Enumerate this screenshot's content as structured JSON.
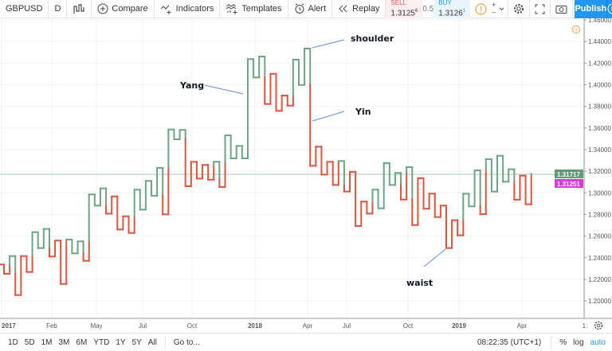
{
  "toolbar": {
    "symbol": "GBPUSD",
    "interval": "D",
    "compare": "Compare",
    "indicators": "Indicators",
    "templates": "Templates",
    "alert": "Alert",
    "replay": "Replay",
    "sell_label": "SELL",
    "sell_price": "1.3125",
    "sell_sup": "6",
    "spread": "0.5",
    "buy_label": "BUY",
    "buy_price": "1.3126",
    "buy_sup": "1",
    "publish": "Publish",
    "icons": [
      "kagi-chart-icon",
      "plus-circle-icon",
      "indicators-icon",
      "templates-icon",
      "alarm-clock-icon",
      "replay-icon",
      "info-icon",
      "zoom-in-icon",
      "zoom-out-icon",
      "chevron-down-icon",
      "gear-icon",
      "fullscreen-icon",
      "camera-icon",
      "play-icon"
    ]
  },
  "colors": {
    "yang": "#6ba583",
    "yin": "#e0533d",
    "accent": "#2196f3",
    "last_price_bg": "#5f9e74",
    "bid_bg": "#d53bd6",
    "annotation_line": "#5b8fe6"
  },
  "chart_data": {
    "type": "kagi",
    "symbol": "GBPUSD",
    "ylim": [
      1.19,
      1.465
    ],
    "y_ticks": [
      "1.46000",
      "1.44000",
      "1.42000",
      "1.40000",
      "1.38000",
      "1.36000",
      "1.34000",
      "1.32000",
      "1.30000",
      "1.28000",
      "1.26000",
      "1.24000",
      "1.22000",
      "1.20000"
    ],
    "x_ticks": [
      "2017",
      "Feb",
      "May",
      "Jul",
      "Oct",
      "2018",
      "Apr",
      "Jul",
      "Oct",
      "2019",
      "Apr",
      "1:"
    ],
    "levels": [
      1.2337,
      1.2251,
      1.2415,
      1.2054,
      1.2415,
      1.2268,
      1.2636,
      1.2489,
      1.2666,
      1.2411,
      1.2558,
      1.2157,
      1.2568,
      1.244,
      1.2551,
      1.2371,
      1.2985,
      1.2882,
      1.3041,
      1.2808,
      1.2967,
      1.2661,
      1.2783,
      1.2629,
      1.3029,
      1.2845,
      1.311,
      1.2973,
      1.323,
      1.2801,
      1.3586,
      1.3495,
      1.3582,
      1.3061,
      1.3287,
      1.3132,
      1.3258,
      1.3122,
      1.3287,
      1.3054,
      1.3532,
      1.3319,
      1.3434,
      1.3319,
      1.4237,
      1.4068,
      1.4261,
      1.3822,
      1.4101,
      1.3758,
      1.39,
      1.3807,
      1.4232,
      1.3998,
      1.4335,
      1.325,
      1.3427,
      1.3169,
      1.3287,
      1.3073,
      1.3294,
      1.3012,
      1.3194,
      1.2693,
      1.2919,
      1.2808,
      1.3029,
      1.2857,
      1.3275,
      1.3073,
      1.3184,
      1.2938,
      1.3238,
      1.2702,
      1.3135,
      1.2853,
      1.2992,
      1.2776,
      1.2882,
      1.2489,
      1.2747,
      1.2607,
      1.2992,
      1.2875,
      1.3208,
      1.2803,
      1.3311,
      1.3012,
      1.3343,
      1.3103,
      1.3218,
      1.2937,
      1.3159,
      1.2894,
      1.3177
    ],
    "last_price": "1.31717",
    "bid_price": "1.31251",
    "annotations": [
      "shoulder",
      "Yang",
      "Yin",
      "waist"
    ]
  },
  "bottombar": {
    "ranges": [
      "1D",
      "5D",
      "1M",
      "3M",
      "6M",
      "YTD",
      "1Y",
      "5Y",
      "All"
    ],
    "goto": "Go to...",
    "time": "08:22:35 (UTC+1)",
    "percent": "%",
    "log": "log",
    "auto": "auto"
  }
}
